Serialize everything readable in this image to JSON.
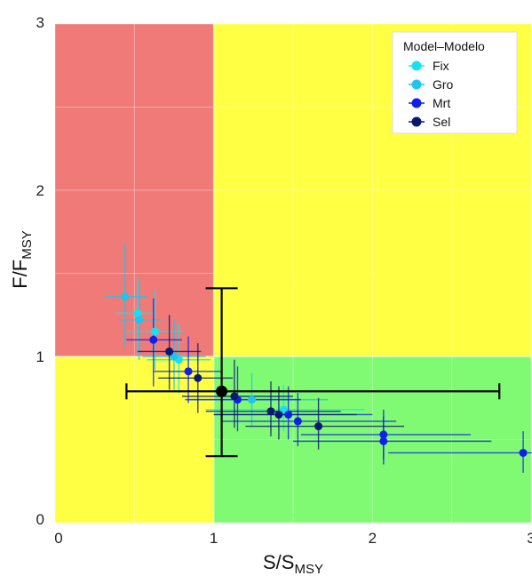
{
  "chart_data": {
    "type": "scatter",
    "title": "",
    "xlabel": {
      "main": "S/S",
      "sub": "MSY"
    },
    "ylabel": {
      "main": "F/F",
      "sub": "MSY"
    },
    "xlim": [
      0,
      3
    ],
    "ylim": [
      0,
      3
    ],
    "xticks": [
      "0",
      "1",
      "2",
      "3"
    ],
    "yticks": [
      "0",
      "1",
      "2",
      "3"
    ],
    "grid": true,
    "legend_position": "top-right",
    "legend_title": "Model–Modelo",
    "quadrants": {
      "overfished_overfishing": "#f07a78",
      "caution": "#ffff44",
      "healthy": "#80fa72",
      "threshold_x": 1,
      "threshold_y": 1
    },
    "series": [
      {
        "name": "Fix",
        "color": "#17e1f0",
        "points": [
          {
            "x": 0.52,
            "y": 1.26,
            "xlo": 0.38,
            "xhi": 0.62,
            "ylo": 1.0,
            "yhi": 1.48
          },
          {
            "x": 0.63,
            "y": 1.15,
            "xlo": 0.45,
            "xhi": 0.82,
            "ylo": 0.92,
            "yhi": 1.4
          },
          {
            "x": 0.78,
            "y": 0.98,
            "xlo": 0.58,
            "xhi": 0.98,
            "ylo": 0.78,
            "yhi": 1.2
          },
          {
            "x": 1.44,
            "y": 0.68,
            "xlo": 0.95,
            "xhi": 1.95,
            "ylo": 0.55,
            "yhi": 0.83
          }
        ]
      },
      {
        "name": "Gro",
        "color": "#20c4ec",
        "points": [
          {
            "x": 0.44,
            "y": 1.36,
            "xlo": 0.32,
            "xhi": 0.58,
            "ylo": 1.06,
            "yhi": 1.68
          },
          {
            "x": 0.53,
            "y": 1.22,
            "xlo": 0.4,
            "xhi": 0.68,
            "ylo": 0.98,
            "yhi": 1.45
          },
          {
            "x": 0.75,
            "y": 1.0,
            "xlo": 0.55,
            "xhi": 0.95,
            "ylo": 0.8,
            "yhi": 1.22
          },
          {
            "x": 1.24,
            "y": 0.74,
            "xlo": 0.85,
            "xhi": 1.72,
            "ylo": 0.58,
            "yhi": 0.9
          }
        ]
      },
      {
        "name": "Mrt",
        "color": "#1020e8",
        "points": [
          {
            "x": 0.62,
            "y": 1.1,
            "xlo": 0.45,
            "xhi": 0.8,
            "ylo": 0.82,
            "yhi": 1.35
          },
          {
            "x": 0.84,
            "y": 0.91,
            "xlo": 0.62,
            "xhi": 1.05,
            "ylo": 0.72,
            "yhi": 1.12
          },
          {
            "x": 1.15,
            "y": 0.74,
            "xlo": 0.82,
            "xhi": 1.55,
            "ylo": 0.55,
            "yhi": 0.94
          },
          {
            "x": 1.47,
            "y": 0.65,
            "xlo": 1.0,
            "xhi": 2.0,
            "ylo": 0.5,
            "yhi": 0.82
          },
          {
            "x": 1.53,
            "y": 0.61,
            "xlo": 1.05,
            "xhi": 2.15,
            "ylo": 0.46,
            "yhi": 0.78
          },
          {
            "x": 2.07,
            "y": 0.53,
            "xlo": 1.55,
            "xhi": 2.62,
            "ylo": 0.38,
            "yhi": 0.68
          },
          {
            "x": 2.07,
            "y": 0.49,
            "xlo": 1.5,
            "xhi": 2.75,
            "ylo": 0.35,
            "yhi": 0.64
          },
          {
            "x": 2.95,
            "y": 0.42,
            "xlo": 2.1,
            "xhi": 3.05,
            "ylo": 0.3,
            "yhi": 0.55
          }
        ]
      },
      {
        "name": "Sel",
        "color": "#0a1872",
        "points": [
          {
            "x": 0.72,
            "y": 1.03,
            "xlo": 0.52,
            "xhi": 0.92,
            "ylo": 0.8,
            "yhi": 1.25
          },
          {
            "x": 0.9,
            "y": 0.87,
            "xlo": 0.65,
            "xhi": 1.12,
            "ylo": 0.66,
            "yhi": 1.08
          },
          {
            "x": 1.13,
            "y": 0.76,
            "xlo": 0.8,
            "xhi": 1.5,
            "ylo": 0.57,
            "yhi": 0.98
          },
          {
            "x": 1.36,
            "y": 0.67,
            "xlo": 0.95,
            "xhi": 1.8,
            "ylo": 0.52,
            "yhi": 0.85
          },
          {
            "x": 1.41,
            "y": 0.65,
            "xlo": 1.0,
            "xhi": 1.9,
            "ylo": 0.5,
            "yhi": 0.82
          },
          {
            "x": 1.66,
            "y": 0.58,
            "xlo": 1.2,
            "xhi": 2.2,
            "ylo": 0.44,
            "yhi": 0.75
          }
        ]
      }
    ],
    "reference_point": {
      "x": 1.05,
      "y": 0.79,
      "xlo": 0.45,
      "xhi": 2.8,
      "ylo": 0.4,
      "yhi": 1.41,
      "color": "#000000"
    }
  }
}
